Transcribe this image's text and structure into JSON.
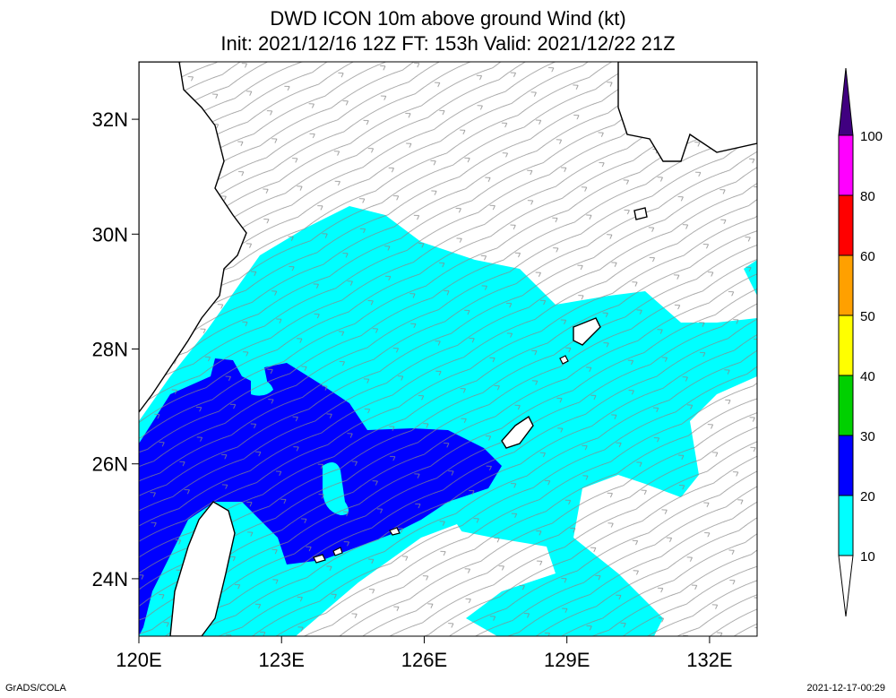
{
  "header": {
    "title": "DWD ICON 10m above ground Wind (kt)",
    "subtitle": "Init: 2021/12/16 12Z  FT: 153h  Valid: 2021/12/22 21Z"
  },
  "axes": {
    "lat_labels": [
      "32N",
      "30N",
      "28N",
      "26N",
      "24N"
    ],
    "lat_values": [
      32,
      30,
      28,
      26,
      24
    ],
    "lon_labels": [
      "120E",
      "123E",
      "126E",
      "129E",
      "132E"
    ],
    "lon_values": [
      120,
      123,
      126,
      129,
      132
    ],
    "lon_range": [
      120,
      133
    ],
    "lat_range": [
      23,
      33
    ]
  },
  "colorbar": {
    "levels": [
      "10",
      "20",
      "30",
      "40",
      "50",
      "60",
      "80",
      "100"
    ],
    "colors": [
      "#00ffff",
      "#0000ff",
      "#00d000",
      "#ffff00",
      "#ffa000",
      "#ff0000",
      "#ff00ff",
      "#400080"
    ]
  },
  "footer": {
    "credit": "GrADS/COLA",
    "timestamp": "2021-12-17-00:29"
  }
}
